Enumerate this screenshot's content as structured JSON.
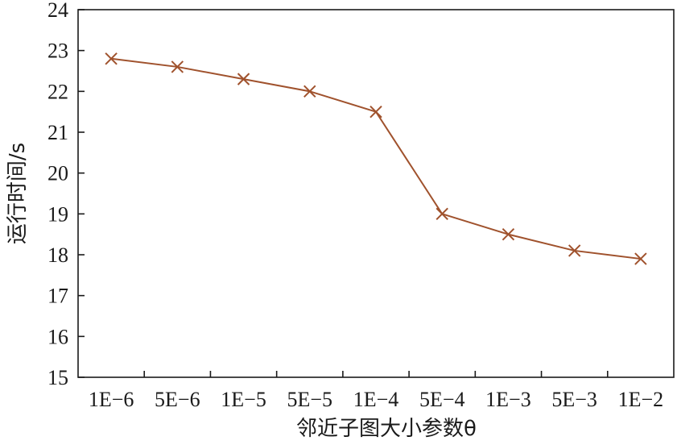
{
  "chart_data": {
    "type": "line",
    "categories": [
      "1E−6",
      "5E−6",
      "1E−5",
      "5E−5",
      "1E−4",
      "5E−4",
      "1E−3",
      "5E−3",
      "1E−2"
    ],
    "series": [
      {
        "values": [
          22.8,
          22.6,
          22.3,
          22.0,
          21.5,
          19.0,
          18.5,
          18.1,
          17.9
        ]
      }
    ],
    "title": "",
    "xlabel": "邻近子图大小参数θ",
    "ylabel": "运行时间/s",
    "ylim": [
      15,
      24
    ],
    "yticks": [
      "15",
      "16",
      "17",
      "18",
      "19",
      "20",
      "21",
      "22",
      "23",
      "24"
    ],
    "marker": "x",
    "grid": false,
    "colors": {
      "series": "#a0522d",
      "axis": "#1a1a1a"
    }
  }
}
